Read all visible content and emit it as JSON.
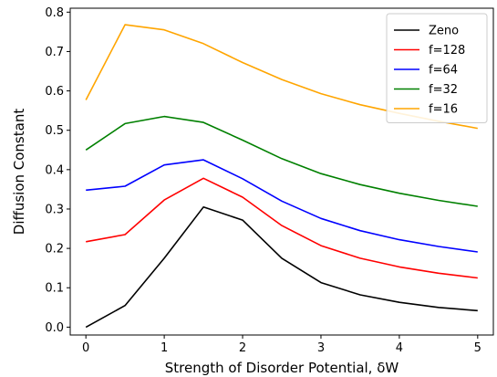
{
  "chart_data": {
    "type": "line",
    "title": "",
    "xlabel": "Strength of Disorder Potential, δW",
    "ylabel": "Diffusion Constant",
    "xlim": [
      -0.2,
      5.2
    ],
    "ylim": [
      -0.02,
      0.81
    ],
    "xticks": [
      0,
      1,
      2,
      3,
      4,
      5
    ],
    "yticks": [
      0.0,
      0.1,
      0.2,
      0.3,
      0.4,
      0.5,
      0.6,
      0.7,
      0.8
    ],
    "xtick_labels": [
      "0",
      "1",
      "2",
      "3",
      "4",
      "5"
    ],
    "ytick_labels": [
      "0.0",
      "0.1",
      "0.2",
      "0.3",
      "0.4",
      "0.5",
      "0.6",
      "0.7",
      "0.8"
    ],
    "grid": false,
    "legend_position": "top-right",
    "x": [
      0,
      0.5,
      1,
      1.5,
      2,
      2.5,
      3,
      3.5,
      4,
      4.5,
      5
    ],
    "series": [
      {
        "name": "Zeno",
        "color": "#000000",
        "values": [
          0.0,
          0.055,
          0.175,
          0.305,
          0.272,
          0.175,
          0.113,
          0.082,
          0.063,
          0.05,
          0.042
        ]
      },
      {
        "name": "f=128",
        "color": "#ff0000",
        "values": [
          0.217,
          0.235,
          0.323,
          0.378,
          0.33,
          0.258,
          0.207,
          0.175,
          0.153,
          0.137,
          0.125
        ]
      },
      {
        "name": "f=64",
        "color": "#0000ff",
        "values": [
          0.348,
          0.358,
          0.412,
          0.425,
          0.377,
          0.32,
          0.276,
          0.245,
          0.222,
          0.205,
          0.191
        ]
      },
      {
        "name": "f=32",
        "color": "#008000",
        "values": [
          0.45,
          0.517,
          0.535,
          0.52,
          0.475,
          0.428,
          0.39,
          0.362,
          0.34,
          0.322,
          0.307
        ]
      },
      {
        "name": "f=16",
        "color": "#ffa500",
        "values": [
          0.577,
          0.768,
          0.755,
          0.72,
          0.672,
          0.629,
          0.593,
          0.565,
          0.543,
          0.523,
          0.505
        ]
      }
    ]
  }
}
